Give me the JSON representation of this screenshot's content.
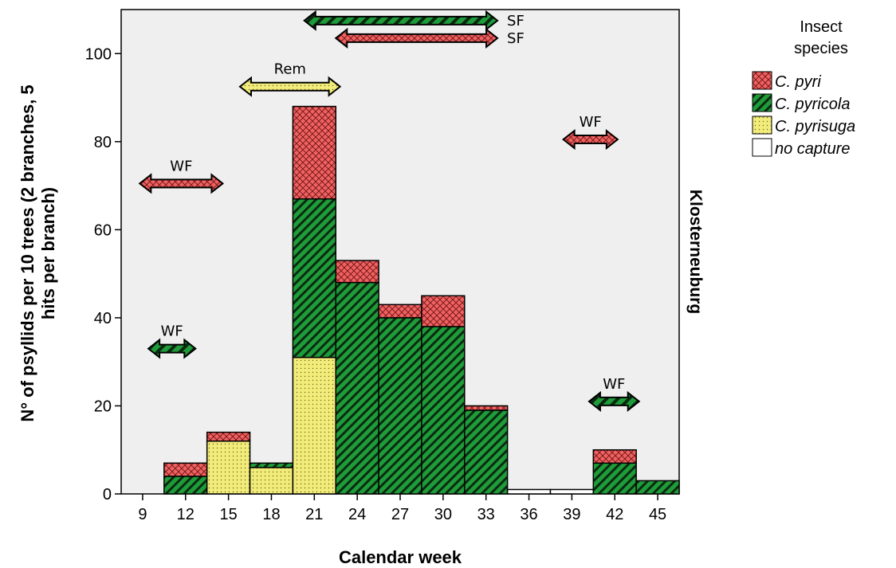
{
  "chart_data": {
    "type": "bar",
    "stacked": true,
    "xlabel": "Calendar week",
    "ylabel_line1": "N° of psyllids per 10 trees (2 branches, 5",
    "ylabel_line2": "hits per branch)",
    "side_label": "Klosterneuburg",
    "ylim": [
      0,
      110
    ],
    "yticks": [
      0,
      20,
      40,
      60,
      80,
      100
    ],
    "xticks": [
      9,
      12,
      15,
      18,
      21,
      24,
      27,
      30,
      33,
      36,
      39,
      42,
      45
    ],
    "xlim": [
      7.5,
      46.5
    ],
    "bin_width": 3,
    "grid": false,
    "legend": {
      "title_line1": "Insect",
      "title_line2": "species",
      "position": "right",
      "entries": [
        {
          "key": "c_pyri",
          "label": "C. pyri"
        },
        {
          "key": "c_pyricola",
          "label": "C. pyricola"
        },
        {
          "key": "c_pyrisuga",
          "label": "C. pyrisuga"
        },
        {
          "key": "no_capture",
          "label": "no capture"
        }
      ]
    },
    "colors": {
      "c_pyri": "#f06262",
      "c_pyricola": "#1f9c3a",
      "c_pyrisuga": "#f2ec7a",
      "no_capture": "#ffffff",
      "plot_bg": "#efefef"
    },
    "bins": [
      {
        "x_start": 10.5,
        "c_pyrisuga": 0,
        "c_pyricola": 4,
        "c_pyri": 3,
        "no_capture": 0
      },
      {
        "x_start": 13.5,
        "c_pyrisuga": 12,
        "c_pyricola": 0,
        "c_pyri": 2,
        "no_capture": 0
      },
      {
        "x_start": 16.5,
        "c_pyrisuga": 6,
        "c_pyricola": 1,
        "c_pyri": 0,
        "no_capture": 0
      },
      {
        "x_start": 19.5,
        "c_pyrisuga": 31,
        "c_pyricola": 36,
        "c_pyri": 21,
        "no_capture": 0
      },
      {
        "x_start": 22.5,
        "c_pyrisuga": 0,
        "c_pyricola": 48,
        "c_pyri": 5,
        "no_capture": 0
      },
      {
        "x_start": 25.5,
        "c_pyrisuga": 0,
        "c_pyricola": 40,
        "c_pyri": 3,
        "no_capture": 0
      },
      {
        "x_start": 28.5,
        "c_pyrisuga": 0,
        "c_pyricola": 38,
        "c_pyri": 7,
        "no_capture": 0
      },
      {
        "x_start": 31.5,
        "c_pyrisuga": 0,
        "c_pyricola": 19,
        "c_pyri": 1,
        "no_capture": 0
      },
      {
        "x_start": 34.5,
        "c_pyrisuga": 0,
        "c_pyricola": 0,
        "c_pyri": 0,
        "no_capture": 1
      },
      {
        "x_start": 37.5,
        "c_pyrisuga": 0,
        "c_pyricola": 0,
        "c_pyri": 0,
        "no_capture": 1
      },
      {
        "x_start": 40.5,
        "c_pyrisuga": 0,
        "c_pyricola": 7,
        "c_pyri": 3,
        "no_capture": 0
      },
      {
        "x_start": 43.5,
        "c_pyrisuga": 0,
        "c_pyricola": 3,
        "c_pyri": 0,
        "no_capture": 0
      }
    ],
    "annotations": [
      {
        "label": "SF",
        "species": "c_pyricola",
        "x_from": 20.3,
        "x_to": 33.8,
        "y": 107.5
      },
      {
        "label": "SF",
        "species": "c_pyri",
        "x_from": 22.5,
        "x_to": 33.8,
        "y": 103.5
      },
      {
        "label": "Rem",
        "species": "c_pyrisuga",
        "x_from": 15.8,
        "x_to": 22.8,
        "y": 92.5
      },
      {
        "label": "WF",
        "species": "c_pyri",
        "x_from": 8.8,
        "x_to": 14.6,
        "y": 70.5
      },
      {
        "label": "WF",
        "species": "c_pyri",
        "x_from": 38.4,
        "x_to": 42.2,
        "y": 80.5
      },
      {
        "label": "WF",
        "species": "c_pyricola",
        "x_from": 9.4,
        "x_to": 12.7,
        "y": 33
      },
      {
        "label": "WF",
        "species": "c_pyricola",
        "x_from": 40.2,
        "x_to": 43.7,
        "y": 21
      }
    ]
  }
}
